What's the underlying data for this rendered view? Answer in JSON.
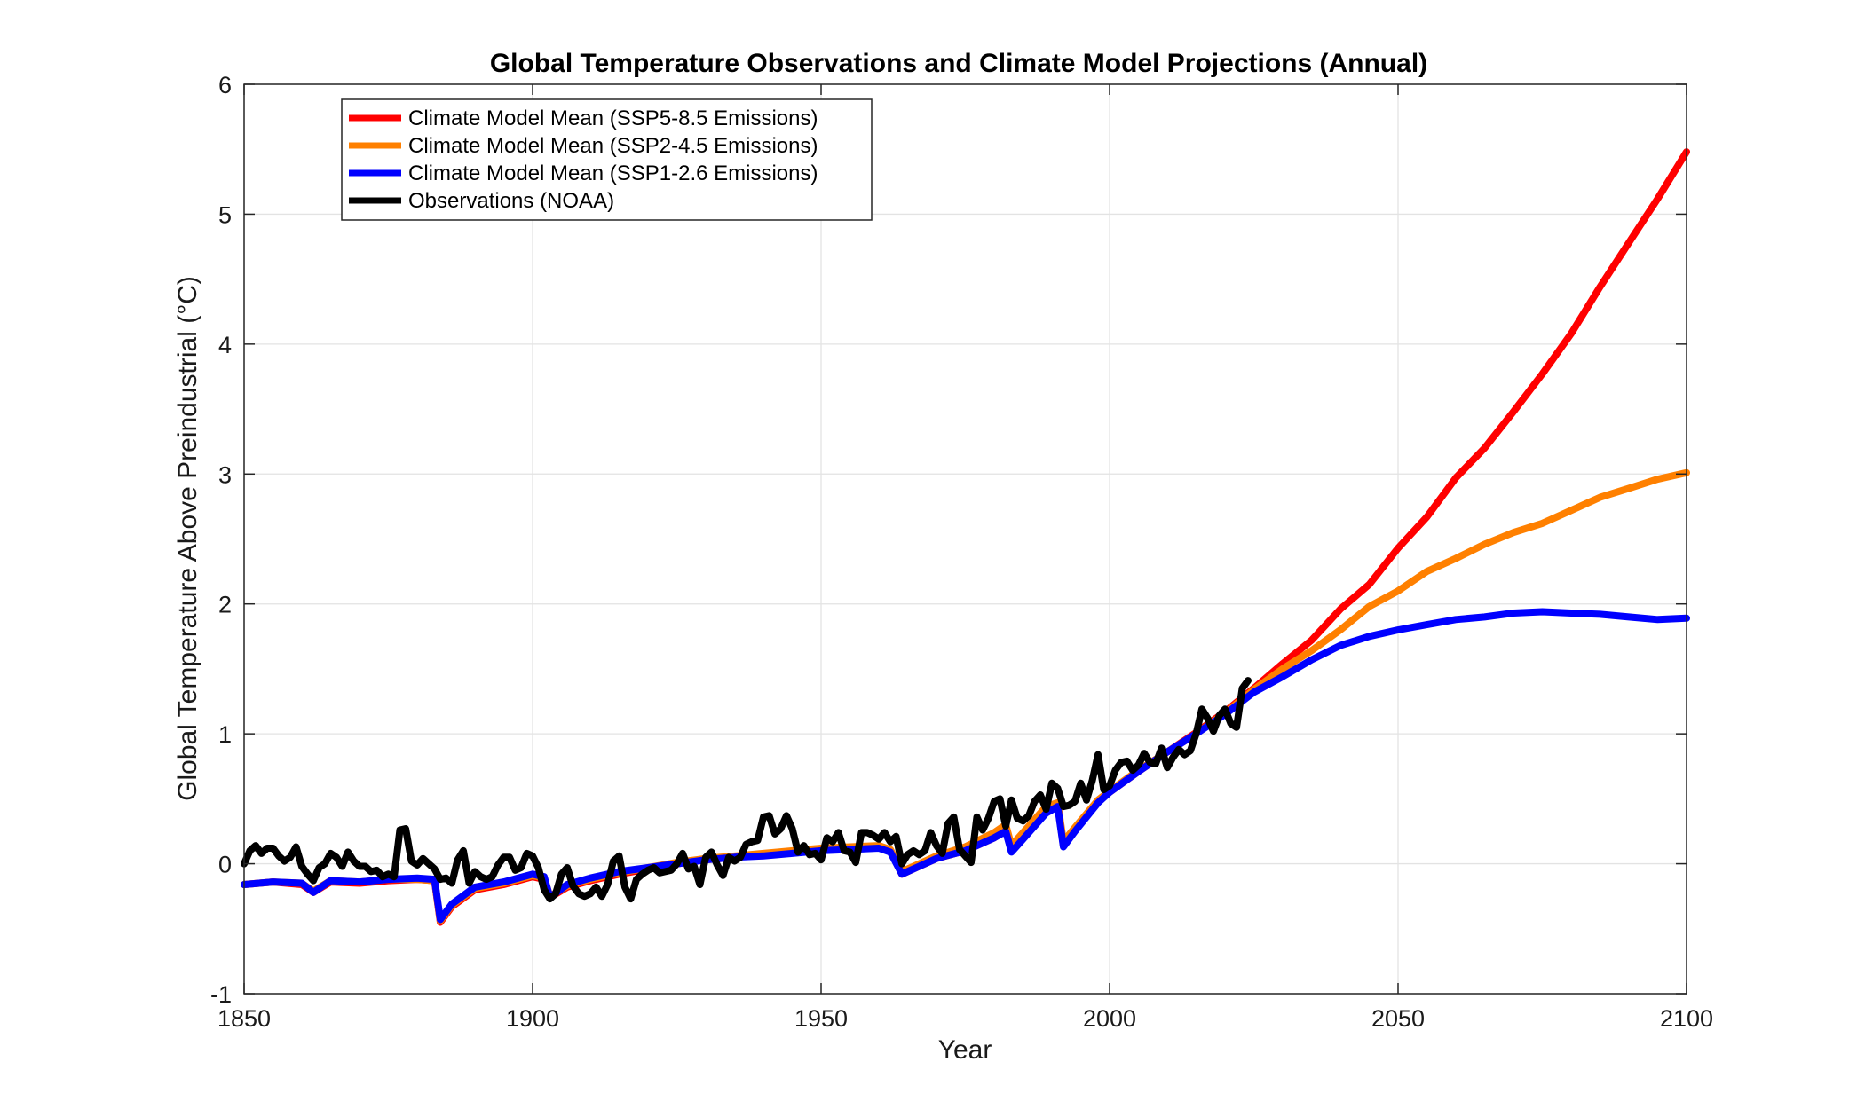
{
  "chart_data": {
    "type": "line",
    "title": "Global Temperature Observations and Climate Model Projections (Annual)",
    "xlabel": "Year",
    "ylabel": "Global Temperature Above Preindustrial (°C)",
    "xlim": [
      1850,
      2100
    ],
    "ylim": [
      -1,
      6
    ],
    "xticks": [
      1850,
      1900,
      1950,
      2000,
      2050,
      2100
    ],
    "yticks": [
      -1,
      0,
      1,
      2,
      3,
      4,
      5,
      6
    ],
    "grid": true,
    "legend_position": "top-left",
    "series": [
      {
        "name": "Climate Model Mean (SSP5-8.5 Emissions)",
        "color": "#ff0000",
        "x": [
          1850,
          1855,
          1860,
          1862,
          1865,
          1870,
          1875,
          1880,
          1883,
          1884,
          1886,
          1890,
          1895,
          1900,
          1902,
          1903,
          1906,
          1910,
          1915,
          1920,
          1925,
          1930,
          1935,
          1940,
          1945,
          1950,
          1955,
          1960,
          1962,
          1964,
          1967,
          1970,
          1975,
          1980,
          1982,
          1983,
          1985,
          1989,
          1991,
          1992,
          1994,
          1998,
          2000,
          2005,
          2010,
          2015,
          2020,
          2025,
          2030,
          2035,
          2040,
          2045,
          2050,
          2055,
          2060,
          2065,
          2070,
          2075,
          2080,
          2085,
          2090,
          2095,
          2100
        ],
        "values": [
          -0.16,
          -0.14,
          -0.16,
          -0.22,
          -0.14,
          -0.15,
          -0.13,
          -0.12,
          -0.13,
          -0.45,
          -0.33,
          -0.2,
          -0.16,
          -0.1,
          -0.12,
          -0.26,
          -0.18,
          -0.13,
          -0.08,
          -0.04,
          0,
          0.03,
          0.05,
          0.07,
          0.09,
          0.11,
          0.12,
          0.13,
          0.1,
          -0.08,
          -0.02,
          0.04,
          0.1,
          0.2,
          0.26,
          0.1,
          0.2,
          0.4,
          0.45,
          0.14,
          0.26,
          0.48,
          0.55,
          0.71,
          0.86,
          1.01,
          1.17,
          1.35,
          1.54,
          1.72,
          1.96,
          2.15,
          2.43,
          2.67,
          2.97,
          3.2,
          3.48,
          3.77,
          4.08,
          4.44,
          4.78,
          5.12,
          5.48
        ]
      },
      {
        "name": "Climate Model Mean (SSP2-4.5 Emissions)",
        "color": "#ff8000",
        "x": [
          1850,
          1855,
          1860,
          1862,
          1865,
          1870,
          1875,
          1880,
          1883,
          1884,
          1886,
          1890,
          1895,
          1900,
          1902,
          1903,
          1906,
          1910,
          1915,
          1920,
          1925,
          1930,
          1935,
          1940,
          1945,
          1950,
          1955,
          1960,
          1962,
          1964,
          1967,
          1970,
          1975,
          1980,
          1982,
          1983,
          1985,
          1989,
          1991,
          1992,
          1994,
          1998,
          2000,
          2005,
          2010,
          2015,
          2020,
          2025,
          2030,
          2035,
          2040,
          2045,
          2050,
          2055,
          2060,
          2065,
          2070,
          2075,
          2080,
          2085,
          2090,
          2095,
          2100
        ],
        "values": [
          -0.16,
          -0.14,
          -0.15,
          -0.21,
          -0.13,
          -0.14,
          -0.12,
          -0.12,
          -0.13,
          -0.44,
          -0.32,
          -0.19,
          -0.15,
          -0.09,
          -0.11,
          -0.25,
          -0.17,
          -0.12,
          -0.07,
          -0.03,
          0.01,
          0.04,
          0.06,
          0.08,
          0.1,
          0.12,
          0.13,
          0.14,
          0.11,
          -0.06,
          0,
          0.06,
          0.13,
          0.24,
          0.3,
          0.14,
          0.24,
          0.44,
          0.47,
          0.17,
          0.28,
          0.49,
          0.56,
          0.72,
          0.86,
          1.0,
          1.16,
          1.34,
          1.5,
          1.64,
          1.8,
          1.98,
          2.1,
          2.25,
          2.35,
          2.46,
          2.55,
          2.62,
          2.72,
          2.82,
          2.89,
          2.96,
          3.01
        ]
      },
      {
        "name": "Climate Model Mean (SSP1-2.6 Emissions)",
        "color": "#0000ff",
        "x": [
          1850,
          1855,
          1860,
          1862,
          1865,
          1870,
          1875,
          1880,
          1883,
          1884,
          1886,
          1890,
          1895,
          1900,
          1902,
          1903,
          1906,
          1910,
          1915,
          1920,
          1925,
          1930,
          1935,
          1940,
          1945,
          1950,
          1955,
          1960,
          1962,
          1964,
          1967,
          1970,
          1975,
          1980,
          1982,
          1983,
          1985,
          1989,
          1991,
          1992,
          1994,
          1998,
          2000,
          2005,
          2010,
          2015,
          2020,
          2025,
          2030,
          2035,
          2040,
          2045,
          2050,
          2055,
          2060,
          2065,
          2070,
          2075,
          2080,
          2085,
          2090,
          2095,
          2100
        ],
        "values": [
          -0.16,
          -0.14,
          -0.15,
          -0.22,
          -0.13,
          -0.14,
          -0.12,
          -0.11,
          -0.12,
          -0.43,
          -0.31,
          -0.18,
          -0.14,
          -0.08,
          -0.1,
          -0.26,
          -0.16,
          -0.11,
          -0.06,
          -0.03,
          0.0,
          0.03,
          0.05,
          0.06,
          0.08,
          0.1,
          0.11,
          0.12,
          0.09,
          -0.08,
          -0.02,
          0.04,
          0.1,
          0.2,
          0.25,
          0.09,
          0.19,
          0.39,
          0.44,
          0.13,
          0.25,
          0.47,
          0.55,
          0.71,
          0.86,
          1.0,
          1.15,
          1.32,
          1.44,
          1.57,
          1.68,
          1.75,
          1.8,
          1.84,
          1.88,
          1.9,
          1.93,
          1.94,
          1.93,
          1.92,
          1.9,
          1.88,
          1.89
        ]
      },
      {
        "name": "Observations (NOAA)",
        "color": "#000000",
        "x": [
          1850,
          1851,
          1852,
          1853,
          1854,
          1855,
          1856,
          1857,
          1858,
          1859,
          1860,
          1861,
          1862,
          1863,
          1864,
          1865,
          1866,
          1867,
          1868,
          1869,
          1870,
          1871,
          1872,
          1873,
          1874,
          1875,
          1876,
          1877,
          1878,
          1879,
          1880,
          1881,
          1882,
          1883,
          1884,
          1885,
          1886,
          1887,
          1888,
          1889,
          1890,
          1891,
          1892,
          1893,
          1894,
          1895,
          1896,
          1897,
          1898,
          1899,
          1900,
          1901,
          1902,
          1903,
          1904,
          1905,
          1906,
          1907,
          1908,
          1909,
          1910,
          1911,
          1912,
          1913,
          1914,
          1915,
          1916,
          1917,
          1918,
          1919,
          1920,
          1921,
          1922,
          1923,
          1924,
          1925,
          1926,
          1927,
          1928,
          1929,
          1930,
          1931,
          1932,
          1933,
          1934,
          1935,
          1936,
          1937,
          1938,
          1939,
          1940,
          1941,
          1942,
          1943,
          1944,
          1945,
          1946,
          1947,
          1948,
          1949,
          1950,
          1951,
          1952,
          1953,
          1954,
          1955,
          1956,
          1957,
          1958,
          1959,
          1960,
          1961,
          1962,
          1963,
          1964,
          1965,
          1966,
          1967,
          1968,
          1969,
          1970,
          1971,
          1972,
          1973,
          1974,
          1975,
          1976,
          1977,
          1978,
          1979,
          1980,
          1981,
          1982,
          1983,
          1984,
          1985,
          1986,
          1987,
          1988,
          1989,
          1990,
          1991,
          1992,
          1993,
          1994,
          1995,
          1996,
          1997,
          1998,
          1999,
          2000,
          2001,
          2002,
          2003,
          2004,
          2005,
          2006,
          2007,
          2008,
          2009,
          2010,
          2011,
          2012,
          2013,
          2014,
          2015,
          2016,
          2017,
          2018,
          2019,
          2020,
          2021,
          2022,
          2023,
          2024
        ],
        "values": [
          0.0,
          0.1,
          0.14,
          0.08,
          0.12,
          0.12,
          0.06,
          0.02,
          0.05,
          0.13,
          -0.02,
          -0.08,
          -0.13,
          -0.03,
          0.0,
          0.08,
          0.05,
          -0.02,
          0.09,
          0.02,
          -0.02,
          -0.02,
          -0.06,
          -0.05,
          -0.1,
          -0.08,
          -0.1,
          0.26,
          0.27,
          0.02,
          -0.01,
          0.04,
          0.0,
          -0.04,
          -0.12,
          -0.11,
          -0.15,
          0.03,
          0.1,
          -0.15,
          -0.06,
          -0.1,
          -0.12,
          -0.1,
          -0.01,
          0.05,
          0.05,
          -0.05,
          -0.03,
          0.08,
          0.06,
          -0.03,
          -0.2,
          -0.27,
          -0.23,
          -0.08,
          -0.03,
          -0.17,
          -0.23,
          -0.25,
          -0.23,
          -0.18,
          -0.25,
          -0.16,
          0.02,
          0.06,
          -0.18,
          -0.27,
          -0.12,
          -0.08,
          -0.05,
          -0.03,
          -0.07,
          -0.06,
          -0.05,
          0.0,
          0.08,
          -0.04,
          -0.02,
          -0.16,
          0.05,
          0.09,
          -0.01,
          -0.09,
          0.05,
          0.02,
          0.05,
          0.15,
          0.17,
          0.18,
          0.36,
          0.37,
          0.23,
          0.27,
          0.37,
          0.27,
          0.09,
          0.14,
          0.07,
          0.08,
          0.03,
          0.2,
          0.17,
          0.24,
          0.1,
          0.09,
          0.01,
          0.24,
          0.24,
          0.22,
          0.19,
          0.24,
          0.17,
          0.21,
          0.0,
          0.07,
          0.1,
          0.07,
          0.1,
          0.24,
          0.14,
          0.08,
          0.31,
          0.36,
          0.11,
          0.06,
          0.01,
          0.36,
          0.26,
          0.35,
          0.48,
          0.5,
          0.29,
          0.49,
          0.35,
          0.33,
          0.37,
          0.48,
          0.53,
          0.42,
          0.62,
          0.58,
          0.44,
          0.45,
          0.48,
          0.62,
          0.49,
          0.64,
          0.84,
          0.57,
          0.6,
          0.72,
          0.78,
          0.79,
          0.72,
          0.76,
          0.85,
          0.78,
          0.77,
          0.89,
          0.74,
          0.82,
          0.88,
          0.84,
          0.87,
          1.0,
          1.19,
          1.12,
          1.02,
          1.14,
          1.19,
          1.08,
          1.05,
          1.35,
          1.41
        ]
      }
    ]
  }
}
